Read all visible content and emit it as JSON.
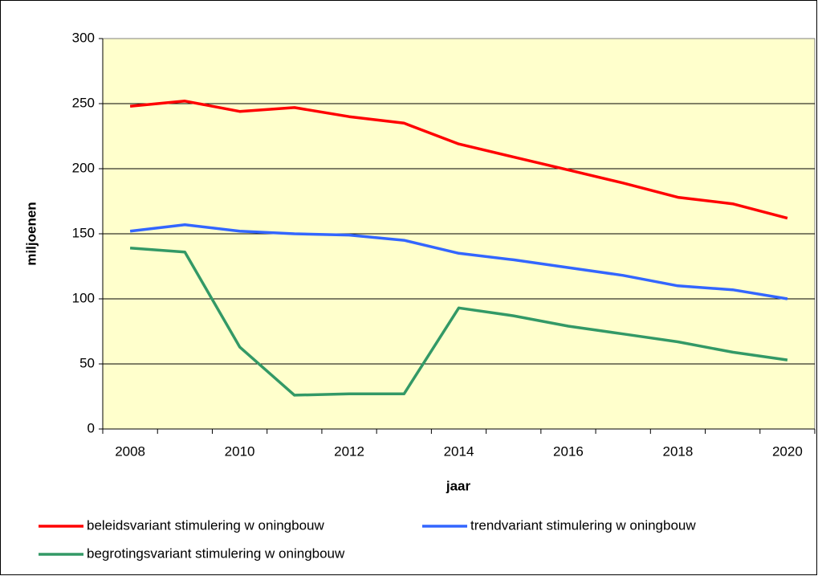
{
  "chart_data": {
    "type": "line",
    "categories": [
      "2008",
      null,
      "2010",
      null,
      "2012",
      null,
      "2014",
      null,
      "2016",
      null,
      "2018",
      null,
      "2020"
    ],
    "xlabel": "jaar",
    "ylabel": "miljoenen",
    "ylim": [
      0,
      300
    ],
    "yticks": [
      0,
      50,
      100,
      150,
      200,
      250,
      300
    ],
    "grid": true,
    "legend": "bottom",
    "series": [
      {
        "name": "beleidsvariant stimulering w oningbouw",
        "color": "#ff0000",
        "values": [
          248,
          252,
          244,
          247,
          240,
          235,
          219,
          209,
          199,
          189,
          178,
          173,
          162
        ]
      },
      {
        "name": "trendvariant stimulering w oningbouw",
        "color": "#3366ff",
        "values": [
          152,
          157,
          152,
          150,
          149,
          145,
          135,
          130,
          124,
          118,
          110,
          107,
          100
        ]
      },
      {
        "name": "begrotingsvariant stimulering w oningbouw",
        "color": "#339966",
        "values": [
          139,
          136,
          63,
          26,
          27,
          27,
          93,
          87,
          79,
          73,
          67,
          59,
          53
        ]
      }
    ]
  }
}
